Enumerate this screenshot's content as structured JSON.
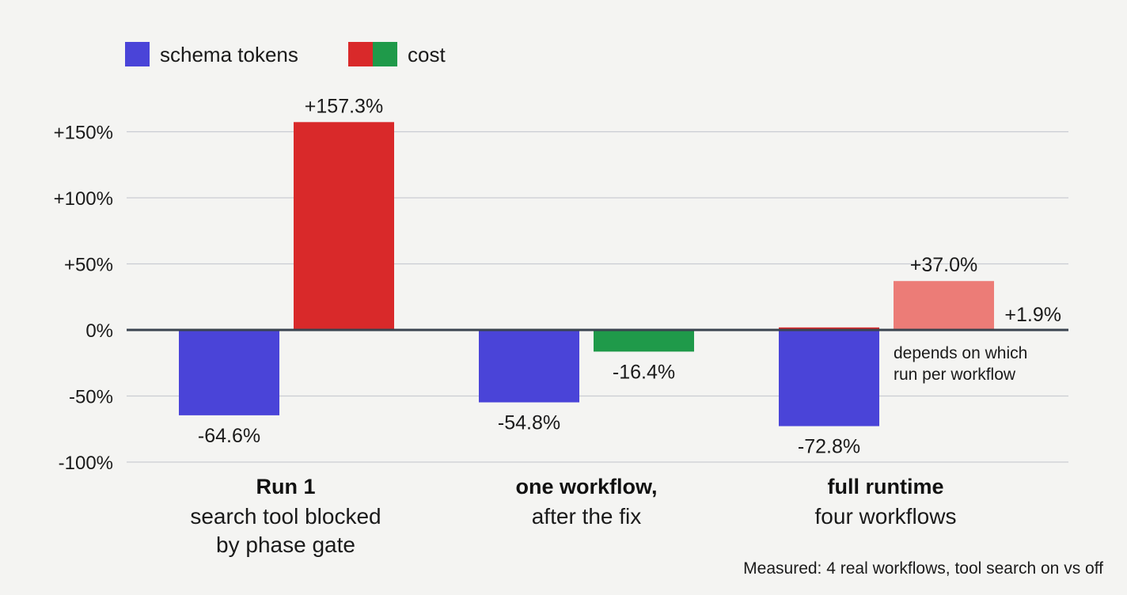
{
  "chart_data": {
    "type": "bar",
    "legend": [
      {
        "label": "schema tokens",
        "colors": [
          "#4a44d8"
        ]
      },
      {
        "label": "cost",
        "colors": [
          "#d9292a",
          "#1f9a4a"
        ]
      }
    ],
    "y_ticks": [
      "+150%",
      "+100%",
      "+50%",
      "0%",
      "-50%",
      "-100%"
    ],
    "y_tick_values": [
      150,
      100,
      50,
      0,
      -50,
      -100
    ],
    "ylim": [
      -100,
      150
    ],
    "grid": true,
    "categories": [
      {
        "title": "Run 1",
        "subtitle": [
          "search tool blocked",
          "by phase gate"
        ]
      },
      {
        "title": "one workflow,",
        "subtitle": [
          "after the fix"
        ]
      },
      {
        "title": "full runtime",
        "subtitle": [
          "four workflows"
        ]
      }
    ],
    "series": [
      {
        "name": "schema tokens",
        "values": [
          -64.6,
          -54.8,
          -72.8
        ],
        "labels": [
          "-64.6%",
          "-54.8%",
          "-72.8%"
        ],
        "colors": [
          "#4a44d8",
          "#4a44d8",
          "#4a44d8"
        ]
      },
      {
        "name": "cost",
        "values": [
          157.3,
          -16.4,
          37.0
        ],
        "labels": [
          "+157.3%",
          "-16.4%",
          "+37.0%"
        ],
        "colors": [
          "#d9292a",
          "#1f9a4a",
          "#ec7c77"
        ]
      }
    ],
    "extra_point": {
      "value": 1.9,
      "label": "+1.9%"
    },
    "annotation": [
      "depends on which",
      "run per workflow"
    ],
    "footnote": "Measured: 4 real workflows, tool search on vs off"
  }
}
